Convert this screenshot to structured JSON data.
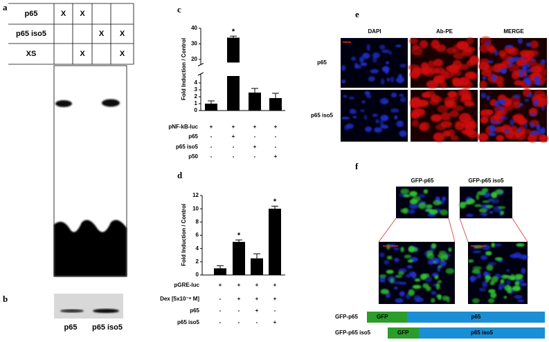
{
  "panels": {
    "a": {
      "label": "a",
      "table": {
        "rows": [
          {
            "label": "p65",
            "cells": [
              "X",
              "X",
              null,
              null
            ]
          },
          {
            "label": "p65 iso5",
            "cells": [
              null,
              null,
              "X",
              "X"
            ]
          },
          {
            "label": "XS",
            "cells": [
              null,
              "X",
              null,
              "X"
            ]
          }
        ]
      }
    },
    "b": {
      "label": "b",
      "lanes": [
        "p65",
        "p65 iso5"
      ]
    },
    "e": {
      "label": "e",
      "columns": [
        "DAPI",
        "Ab-PE",
        "MERGE"
      ],
      "rows": [
        "p65",
        "p65 iso5"
      ]
    },
    "f": {
      "label": "f",
      "images": [
        "GFP-p65",
        "GFP-p65 iso5"
      ],
      "constructs": [
        {
          "name": "GFP-p65",
          "domains": [
            "GFP",
            "p65"
          ]
        },
        {
          "name": "GFP-p65 iso5",
          "domains": [
            "GFP",
            "p65 iso5"
          ]
        }
      ]
    }
  },
  "chart_data": [
    {
      "type": "bar",
      "label": "c",
      "ylabel": "Fold Induction / Control",
      "color": "#000000",
      "values": [
        1.0,
        34,
        2.6,
        1.8
      ],
      "errors": [
        0.4,
        1.0,
        0.6,
        0.7
      ],
      "significance": [
        null,
        "*",
        null,
        null
      ],
      "ylim": [
        0,
        40
      ],
      "yticks": [
        0,
        1,
        2,
        3,
        4,
        20,
        30,
        40
      ],
      "axis_break": [
        5,
        18
      ],
      "conditions": [
        {
          "label": "pNF-kB-luc",
          "signs": [
            "+",
            "+",
            "+",
            "+"
          ]
        },
        {
          "label": "p65",
          "signs": [
            "-",
            "+",
            "-",
            "-"
          ]
        },
        {
          "label": "p65 iso5",
          "signs": [
            "-",
            "-",
            "+",
            "-"
          ]
        },
        {
          "label": "p50",
          "signs": [
            "-",
            "-",
            "-",
            "+"
          ]
        }
      ]
    },
    {
      "type": "bar",
      "label": "d",
      "ylabel": "Fold Induction / Control",
      "color": "#000000",
      "values": [
        1.0,
        5.0,
        2.5,
        10.0
      ],
      "errors": [
        0.4,
        0.3,
        0.7,
        0.4
      ],
      "significance": [
        null,
        "*",
        null,
        "*"
      ],
      "ylim": [
        0,
        12
      ],
      "yticks": [
        0,
        2,
        4,
        6,
        8,
        10,
        12
      ],
      "conditions": [
        {
          "label": "pGRE-luc",
          "signs": [
            "+",
            "+",
            "+",
            "+"
          ]
        },
        {
          "label": "Dex [5x10⁻⁸ M]",
          "signs": [
            "-",
            "+",
            "+",
            "+"
          ]
        },
        {
          "label": "p65",
          "signs": [
            "-",
            "-",
            "+",
            "-"
          ]
        },
        {
          "label": "p65 iso5",
          "signs": [
            "-",
            "-",
            "-",
            "+"
          ]
        }
      ]
    }
  ]
}
